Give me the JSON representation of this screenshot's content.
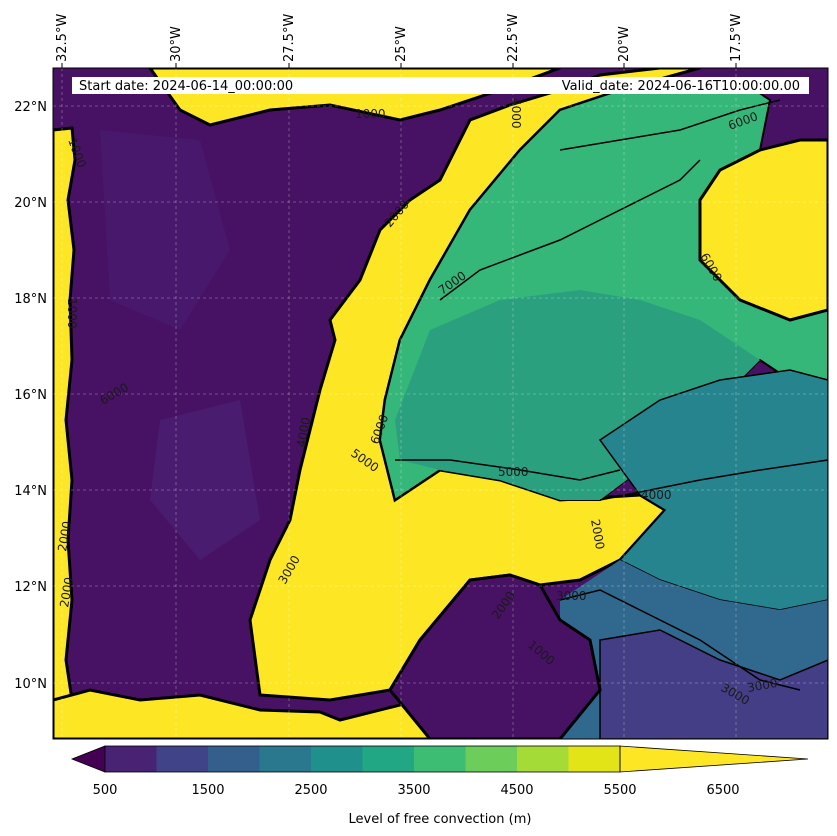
{
  "header": {
    "start_date": "Start date: 2024-06-14_00:00:00",
    "valid_date": "Valid_date: 2024-06-16T10:00:00.00"
  },
  "axes": {
    "lon_ticks": [
      "32.5°W",
      "30°W",
      "27.5°W",
      "25°W",
      "22.5°W",
      "20°W",
      "17.5°W"
    ],
    "lat_ticks": [
      "22°N",
      "20°N",
      "18°N",
      "16°N",
      "14°N",
      "12°N",
      "10°N"
    ]
  },
  "colorbar": {
    "tick_labels": [
      "500",
      "1500",
      "2500",
      "3500",
      "4500",
      "5500",
      "6500"
    ],
    "label": "Level of free convection (m)",
    "colors": [
      "#440154",
      "#482374",
      "#404387",
      "#345f8d",
      "#29788e",
      "#20908d",
      "#22a784",
      "#3dbc74",
      "#6ccd5a",
      "#a5db36",
      "#e2e418",
      "#fde725"
    ]
  },
  "map": {
    "colors": {
      "low": "#471164",
      "yellow": "#fde725",
      "green_a": "#35b779",
      "green_b": "#2aa07f",
      "teal": "#25848e",
      "blue": "#30688e",
      "purple_mid": "#433e85"
    },
    "contour_labels": [
      "1000",
      "4000",
      "6000",
      "2000",
      "7000",
      "6000",
      "6000",
      "5000",
      "5000",
      "4000",
      "3000",
      "2000",
      "3000",
      "2000",
      "3000",
      "6000",
      "1000",
      "1000",
      "4000",
      "2000",
      "3000",
      "1000",
      "2000"
    ]
  }
}
